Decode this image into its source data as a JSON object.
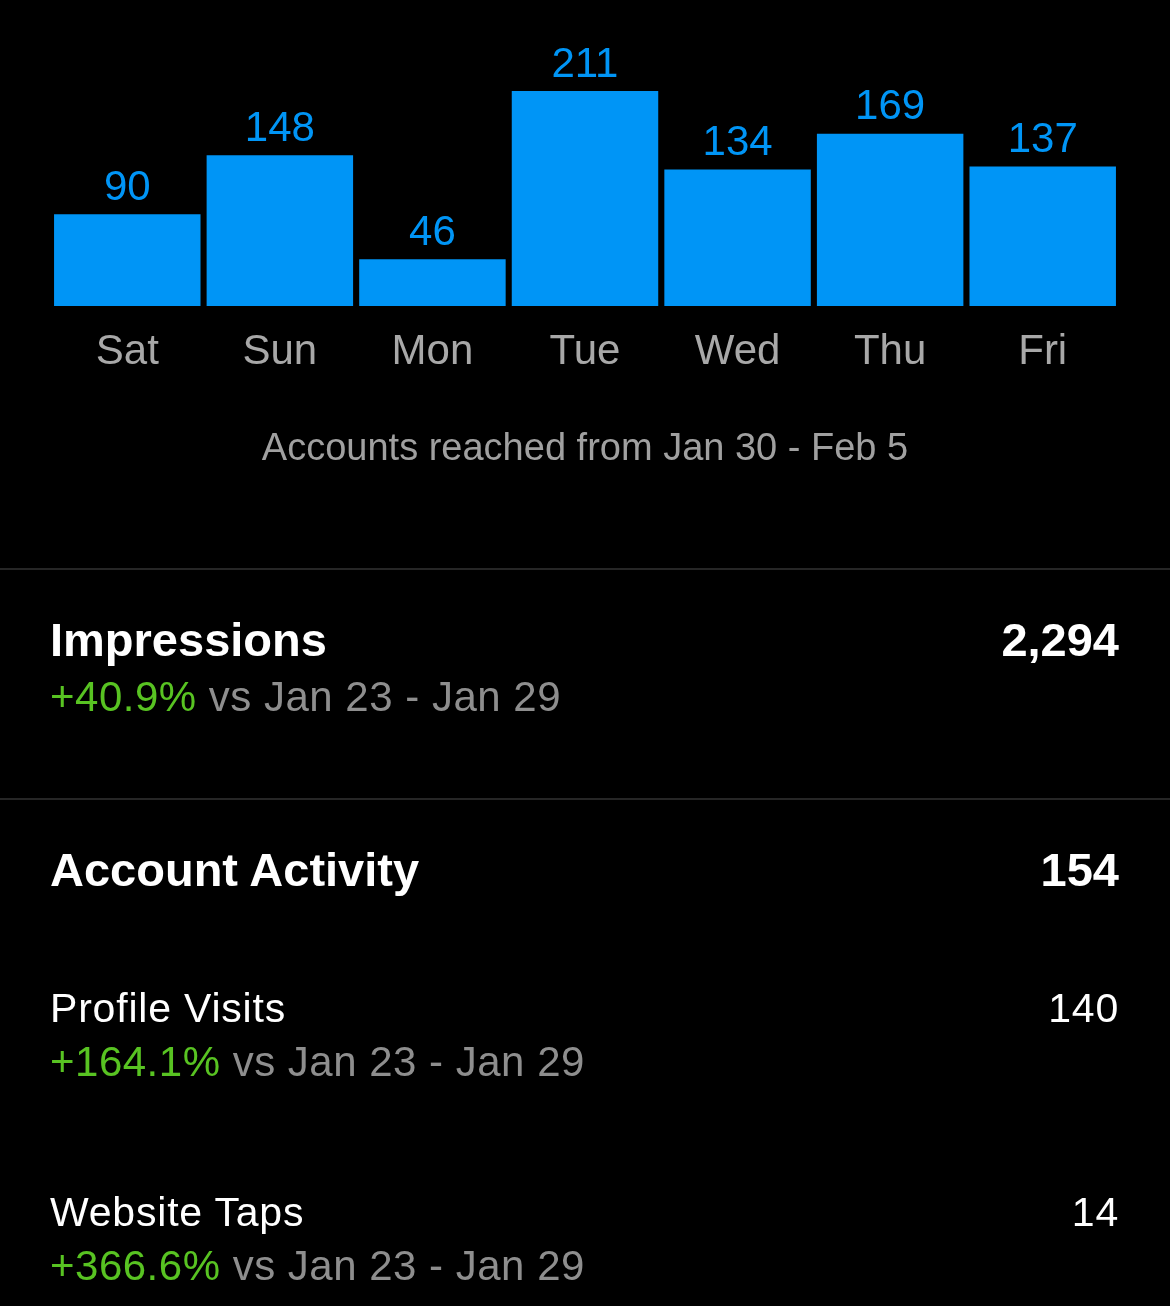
{
  "chart_data": [
    {
      "type": "bar",
      "categories": [
        "Sat",
        "Sun",
        "Mon",
        "Tue",
        "Wed",
        "Thu",
        "Fri"
      ],
      "values": [
        90,
        148,
        46,
        211,
        134,
        169,
        137
      ],
      "color": "#0095f6",
      "data_labels": true,
      "annotations": [
        "Accounts reached from Jan 30 - Feb 5"
      ]
    },
    {
      "type": "other",
      "title": "Impressions",
      "subtitle": "+40.9% vs Jan 23 - Jan 29",
      "values": [
        2294
      ],
      "value_labels": [
        "2,294"
      ]
    },
    {
      "type": "other",
      "title": "Account Activity",
      "values": [
        154
      ],
      "data_labels": true
    },
    {
      "type": "other",
      "title": "Profile Visits",
      "subtitle": "+164.1% vs Jan 23 - Jan 29",
      "values": [
        140
      ],
      "data_labels": true
    },
    {
      "type": "other",
      "title": "Website Taps",
      "subtitle": "+366.6% vs Jan 23 - Jan 29",
      "values": [
        14
      ],
      "data_labels": true
    }
  ]
}
